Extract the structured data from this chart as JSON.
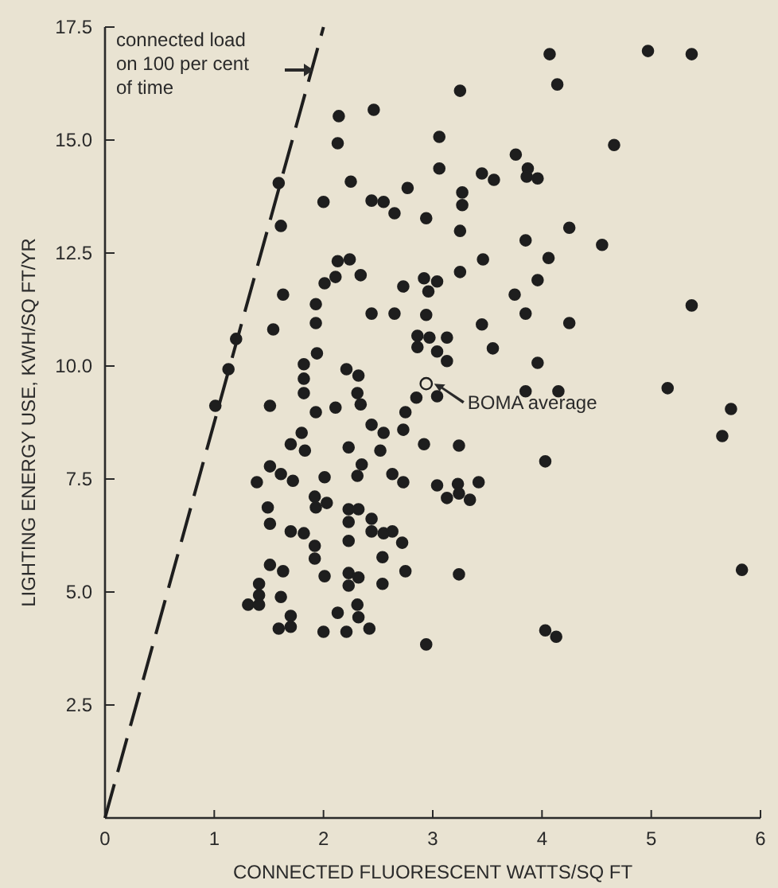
{
  "chart_data": {
    "type": "scatter",
    "xlabel": "CONNECTED FLUORESCENT WATTS/SQ FT",
    "ylabel": "LIGHTING ENERGY USE, KWH/SQ FT/YR",
    "xlim": [
      0,
      6
    ],
    "xticks": [
      0,
      1,
      2,
      3,
      4,
      5,
      6
    ],
    "ylim": [
      0,
      17.5
    ],
    "yticks": [
      {
        "value": 2.5,
        "label": "2.5"
      },
      {
        "value": 5,
        "label": "5.0"
      },
      {
        "value": 7.5,
        "label": "7.5"
      },
      {
        "value": 10,
        "label": "10.0"
      },
      {
        "value": 12.5,
        "label": "12.5"
      },
      {
        "value": 15,
        "label": "15.0"
      },
      {
        "value": 17.5,
        "label": "17.5"
      }
    ],
    "marker": "circle",
    "grid": false,
    "annotations": [
      "connected load on 100 per cent of time"
    ],
    "series": [
      {
        "color": "#1e1e1e",
        "x": [
          2.14,
          2.46,
          2.13,
          1.59,
          2.25,
          2.0,
          2.44,
          2.55,
          1.61,
          2.13,
          2.24,
          2.11,
          2.34,
          2.01,
          1.63,
          1.93,
          2.44,
          1.54,
          1.93,
          1.2,
          1.94,
          1.82,
          1.13,
          1.82,
          1.82,
          2.21,
          2.32,
          2.31,
          2.34,
          1.51,
          1.01,
          1.93,
          2.11,
          2.44,
          2.55,
          1.8,
          1.7,
          1.83,
          2.23,
          2.52,
          1.51,
          1.61,
          1.72,
          2.35,
          2.31,
          1.39,
          2.01,
          1.92,
          1.93,
          2.03,
          1.49,
          1.51,
          2.23,
          2.32,
          2.23,
          2.44,
          1.7,
          1.82,
          2.44,
          2.55,
          2.23,
          1.92,
          1.92,
          2.54,
          1.51,
          1.63,
          2.01,
          2.23,
          2.32,
          2.23,
          2.54,
          1.41,
          1.41,
          1.31,
          1.41,
          1.61,
          2.31,
          2.13,
          1.7,
          2.32,
          1.59,
          1.7,
          2.0,
          2.21,
          2.42,
          4.07,
          4.14,
          3.25,
          3.06,
          3.76,
          3.06,
          3.45,
          3.56,
          3.87,
          3.86,
          3.96,
          2.77,
          2.65,
          3.27,
          3.27,
          2.94,
          3.25,
          4.25,
          3.85,
          3.46,
          4.06,
          3.25,
          2.92,
          3.04,
          2.73,
          2.96,
          3.96,
          3.75,
          2.65,
          2.94,
          3.85,
          4.25,
          3.45,
          2.86,
          2.97,
          3.13,
          2.86,
          3.04,
          3.55,
          3.13,
          3.96,
          2.85,
          3.04,
          3.85,
          4.15,
          2.75,
          2.73,
          2.92,
          3.24,
          4.03,
          2.63,
          2.73,
          3.04,
          3.23,
          3.42,
          3.13,
          3.24,
          3.34,
          2.63,
          2.72,
          2.75,
          3.24,
          2.94,
          4.03,
          4.13,
          4.97,
          5.37,
          4.66,
          4.55,
          5.37,
          5.15,
          5.73,
          5.65,
          5.83
        ],
        "values": [
          15.53,
          15.67,
          14.93,
          14.05,
          14.08,
          13.63,
          13.66,
          13.63,
          13.1,
          12.32,
          12.36,
          11.97,
          12.01,
          11.83,
          11.58,
          11.37,
          11.16,
          10.81,
          10.95,
          10.6,
          10.28,
          10.04,
          9.93,
          9.72,
          9.4,
          9.93,
          9.79,
          9.4,
          9.15,
          9.12,
          9.12,
          8.98,
          9.08,
          8.7,
          8.52,
          8.52,
          8.27,
          8.13,
          8.2,
          8.13,
          7.78,
          7.61,
          7.46,
          7.82,
          7.57,
          7.43,
          7.54,
          7.11,
          6.87,
          6.97,
          6.87,
          6.51,
          6.83,
          6.83,
          6.55,
          6.62,
          6.34,
          6.3,
          6.34,
          6.3,
          6.13,
          6.02,
          5.74,
          5.77,
          5.6,
          5.46,
          5.35,
          5.42,
          5.32,
          5.14,
          5.18,
          5.18,
          4.93,
          4.72,
          4.72,
          4.89,
          4.72,
          4.54,
          4.47,
          4.44,
          4.19,
          4.23,
          4.12,
          4.12,
          4.19,
          16.9,
          16.23,
          16.09,
          15.07,
          14.68,
          14.37,
          14.26,
          14.12,
          14.37,
          14.19,
          14.15,
          13.94,
          13.38,
          13.84,
          13.56,
          13.27,
          12.99,
          13.06,
          12.78,
          12.36,
          12.39,
          12.08,
          11.94,
          11.87,
          11.76,
          11.65,
          11.9,
          11.58,
          11.16,
          11.13,
          11.16,
          10.95,
          10.92,
          10.67,
          10.63,
          10.63,
          10.42,
          10.32,
          10.39,
          10.11,
          10.07,
          9.3,
          9.33,
          9.44,
          9.44,
          8.98,
          8.59,
          8.27,
          8.24,
          7.89,
          7.61,
          7.43,
          7.36,
          7.39,
          7.43,
          7.08,
          7.18,
          7.04,
          6.34,
          6.09,
          5.46,
          5.39,
          3.84,
          4.15,
          4.01,
          16.97,
          16.9,
          14.89,
          12.68,
          11.34,
          9.51,
          9.05,
          8.45,
          5.49
        ]
      },
      {
        "type": "scatter",
        "name": "BOMA average",
        "color": "#1e1e1e",
        "x": [
          2.94
        ],
        "values": [
          9.61
        ]
      },
      {
        "type": "line",
        "color": "#1e1e1e",
        "line_style": "dashed",
        "marker": "none",
        "x": [
          0,
          2.0
        ],
        "values": [
          0,
          17.5
        ]
      }
    ]
  }
}
